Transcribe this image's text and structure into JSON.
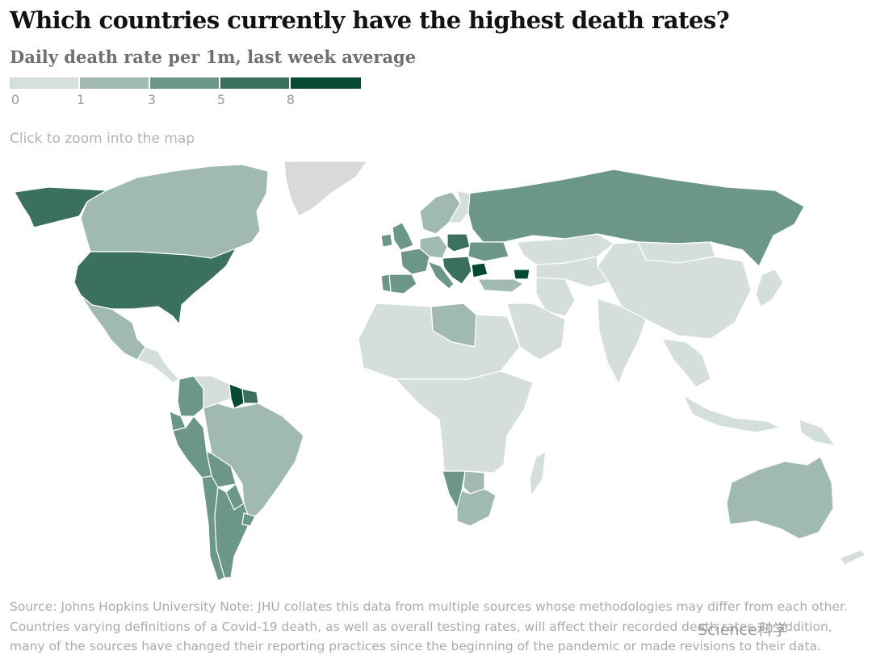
{
  "header": {
    "title": "Which countries currently have the highest death rates?",
    "subtitle": "Daily death rate per 1m, last week average"
  },
  "legend": {
    "bins": [
      {
        "from": "0",
        "color": "#d4dfdc"
      },
      {
        "from": "1",
        "color": "#a0bab3"
      },
      {
        "from": "3",
        "color": "#6c9689"
      },
      {
        "from": "5",
        "color": "#3b6f5f"
      },
      {
        "from": "8",
        "color": "#064a34"
      }
    ],
    "tick_labels": [
      "0",
      "1",
      "3",
      "5",
      "8"
    ]
  },
  "zoom_hint": "Click to zoom into the map",
  "map": {
    "no_data_color": "#d9d9d9",
    "ocean_color": "#ffffff",
    "regions": [
      {
        "name": "Alaska",
        "bin": 3
      },
      {
        "name": "Canada",
        "bin": 1
      },
      {
        "name": "Greenland",
        "bin": -1
      },
      {
        "name": "United States",
        "bin": 3
      },
      {
        "name": "Mexico",
        "bin": 1
      },
      {
        "name": "Central America",
        "bin": 0
      },
      {
        "name": "Colombia",
        "bin": 2
      },
      {
        "name": "Venezuela",
        "bin": 0
      },
      {
        "name": "Guyana",
        "bin": 4
      },
      {
        "name": "Suriname",
        "bin": 3
      },
      {
        "name": "Ecuador",
        "bin": 2
      },
      {
        "name": "Peru",
        "bin": 2
      },
      {
        "name": "Brazil",
        "bin": 1
      },
      {
        "name": "Bolivia",
        "bin": 2
      },
      {
        "name": "Paraguay",
        "bin": 2
      },
      {
        "name": "Chile",
        "bin": 2
      },
      {
        "name": "Argentina",
        "bin": 2
      },
      {
        "name": "Uruguay",
        "bin": 2
      },
      {
        "name": "Russia",
        "bin": 2
      },
      {
        "name": "Scandinavia",
        "bin": 1
      },
      {
        "name": "Finland",
        "bin": 0
      },
      {
        "name": "United Kingdom",
        "bin": 2
      },
      {
        "name": "Ireland",
        "bin": 2
      },
      {
        "name": "France",
        "bin": 2
      },
      {
        "name": "Spain",
        "bin": 2
      },
      {
        "name": "Portugal",
        "bin": 2
      },
      {
        "name": "Germany",
        "bin": 1
      },
      {
        "name": "Poland",
        "bin": 3
      },
      {
        "name": "Ukraine",
        "bin": 2
      },
      {
        "name": "Italy",
        "bin": 2
      },
      {
        "name": "Balkans",
        "bin": 3
      },
      {
        "name": "Bulgaria",
        "bin": 4
      },
      {
        "name": "Georgia",
        "bin": 4
      },
      {
        "name": "Turkey",
        "bin": 1
      },
      {
        "name": "Kazakhstan",
        "bin": 0
      },
      {
        "name": "Mongolia",
        "bin": 0
      },
      {
        "name": "China",
        "bin": 0
      },
      {
        "name": "Iran",
        "bin": 0
      },
      {
        "name": "Central Asia",
        "bin": 0
      },
      {
        "name": "India",
        "bin": 0
      },
      {
        "name": "Southeast Asia",
        "bin": 0
      },
      {
        "name": "Japan",
        "bin": 0
      },
      {
        "name": "Libya",
        "bin": 1
      },
      {
        "name": "North Africa",
        "bin": 0
      },
      {
        "name": "Arabian Peninsula",
        "bin": 0
      },
      {
        "name": "Central Africa",
        "bin": 0
      },
      {
        "name": "Namibia",
        "bin": 2
      },
      {
        "name": "Botswana",
        "bin": 1
      },
      {
        "name": "South Africa",
        "bin": 1
      },
      {
        "name": "Madagascar",
        "bin": 0
      },
      {
        "name": "Indonesia",
        "bin": 0
      },
      {
        "name": "Papua New Guinea",
        "bin": 0
      },
      {
        "name": "Australia",
        "bin": 1
      },
      {
        "name": "New Zealand",
        "bin": 0
      }
    ]
  },
  "footer": {
    "source_text": "Source: Johns Hopkins University Note: JHU collates this data from multiple sources whose methodologies may differ from each other. Countries varying definitions of a Covid-19 death, as well as overall testing rates, will affect their recorded death rates. In addition, many of the sources have changed their reporting practices since the beginning of the pandemic or made revisions to their data.",
    "watermark": "Science科学"
  }
}
